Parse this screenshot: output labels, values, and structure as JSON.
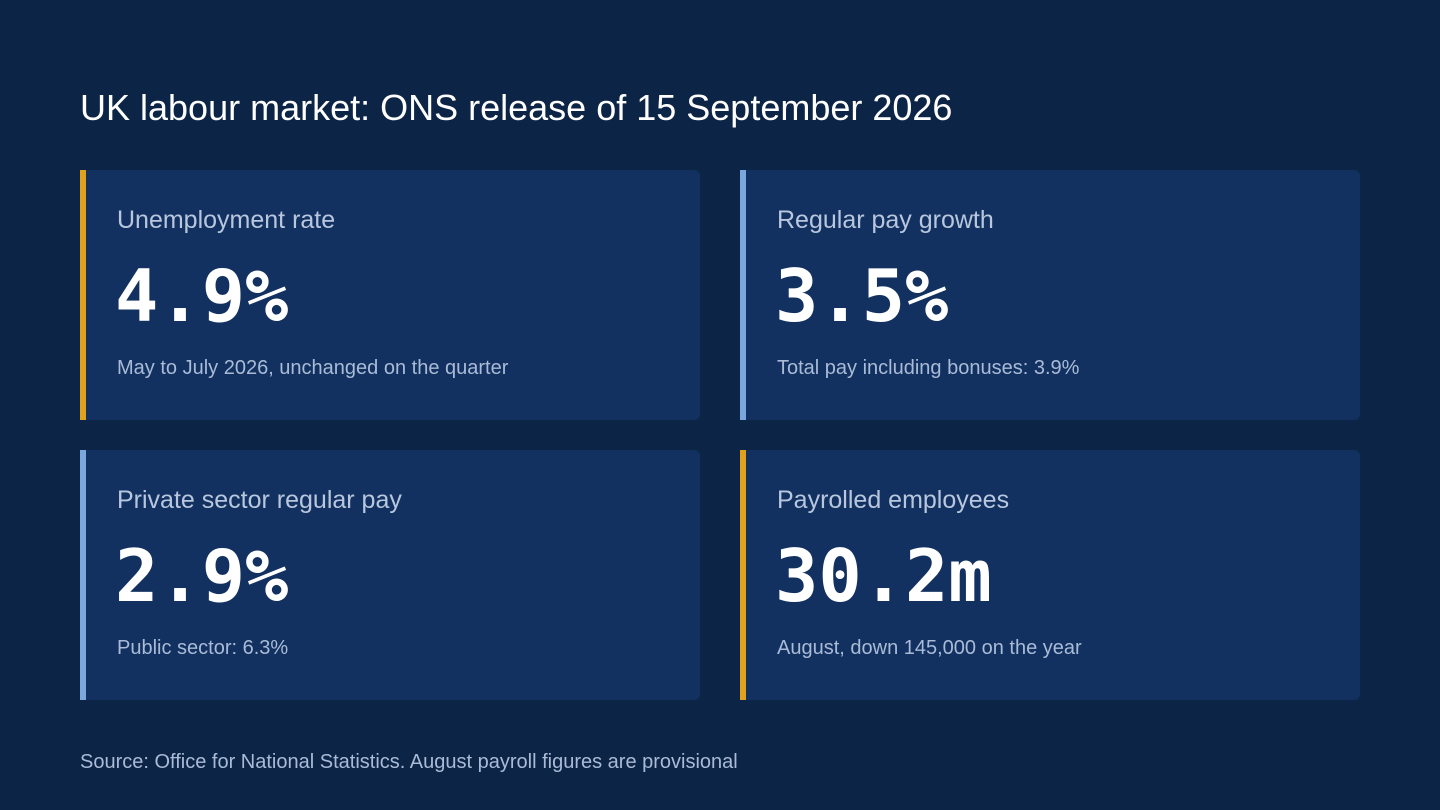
{
  "header": {
    "title": "UK labour market: ONS release of 15 September 2026"
  },
  "colors": {
    "background": "#0c2445",
    "card": "#123160",
    "accent_gold": "#e0a21c",
    "accent_blue": "#7ba7dd"
  },
  "cards": [
    {
      "label": "Unemployment rate",
      "value": "4.9%",
      "note": "May to July 2026, unchanged on the quarter",
      "accent": "#e0a21c"
    },
    {
      "label": "Regular pay growth",
      "value": "3.5%",
      "note": "Total pay including bonuses: 3.9%",
      "accent": "#7ba7dd"
    },
    {
      "label": "Private sector regular pay",
      "value": "2.9%",
      "note": "Public sector: 6.3%",
      "accent": "#7ba7dd"
    },
    {
      "label": "Payrolled employees",
      "value": "30.2m",
      "note": "August, down 145,000 on the year",
      "accent": "#e0a21c"
    }
  ],
  "footer": {
    "source": "Source: Office for National Statistics. August payroll figures are provisional"
  }
}
